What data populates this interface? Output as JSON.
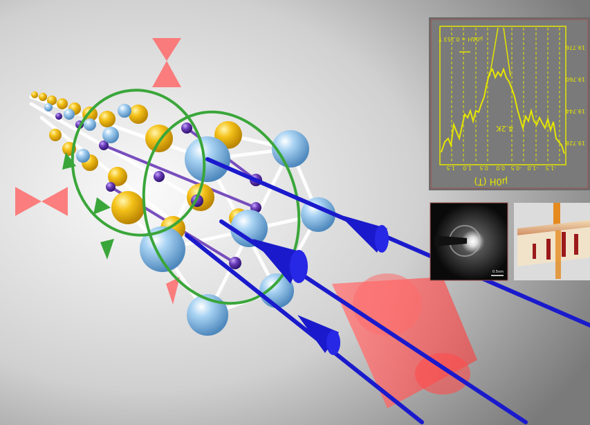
{
  "illustration": {
    "subject": "nanowire crystal lattice with spin and field arrows",
    "colors": {
      "background_light": "#f2f2f2",
      "background_dark": "#7a7a7a",
      "gold_atom": "#f5c21a",
      "blue_atom": "#8fc3ea",
      "purple_atom": "#6a3db8",
      "arrow_blue": "#1a1acc",
      "arrow_green": "#3aa63a",
      "cone_red": "#ff5a5a",
      "plot_yellow": "#e6e600"
    }
  },
  "plot_inset": {
    "annotation": "μ0ΔH = 0.253 T",
    "temperature": "4.2K",
    "xlabel": "μ0H (T)",
    "x_ticks": [
      "1.5",
      "1.0",
      "0.5",
      "0.0",
      "-0.5",
      "-1.0",
      "-1.5"
    ],
    "y_ticks": [
      "19.776",
      "19.760",
      "19.744",
      "19.728"
    ]
  },
  "diffraction_inset": {
    "scale_label": "0.5nm"
  },
  "device_inset": {
    "description": "nanowire array cross section"
  }
}
